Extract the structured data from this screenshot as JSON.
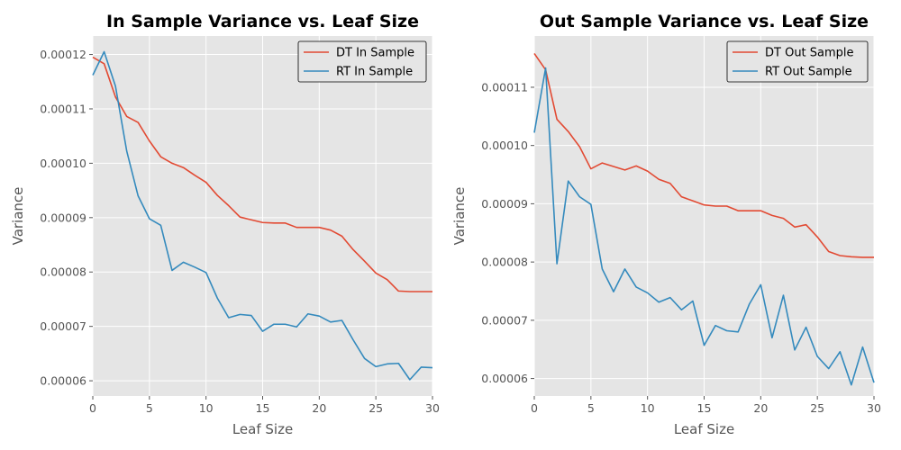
{
  "chart_data": [
    {
      "type": "line",
      "title": "In Sample Variance vs. Leaf Size",
      "xlabel": "Leaf Size",
      "ylabel": "Variance",
      "xlim": [
        0,
        30
      ],
      "ylim": [
        5.72e-05,
        0.0001234
      ],
      "xticks": [
        0,
        5,
        10,
        15,
        20,
        25,
        30
      ],
      "xtick_labels": [
        "0",
        "5",
        "10",
        "15",
        "20",
        "25",
        "30"
      ],
      "yticks": [
        6e-05,
        7e-05,
        8e-05,
        9e-05,
        0.0001,
        0.00011,
        0.00012
      ],
      "ytick_labels": [
        "0.00006",
        "0.00007",
        "0.00008",
        "0.00009",
        "0.00010",
        "0.00011",
        "0.00012"
      ],
      "grid": true,
      "legend": "top-right",
      "x": [
        0,
        1,
        2,
        3,
        4,
        5,
        6,
        7,
        8,
        9,
        10,
        11,
        12,
        13,
        14,
        15,
        16,
        17,
        18,
        19,
        20,
        21,
        22,
        23,
        24,
        25,
        26,
        27,
        28,
        29,
        30
      ],
      "series": [
        {
          "name": "DT In Sample",
          "color": "#E24A33",
          "values": [
            0.0001195,
            0.0001183,
            0.0001122,
            0.0001086,
            0.0001075,
            0.0001041,
            0.0001012,
            0.0001,
            9.92e-05,
            9.78e-05,
            9.65e-05,
            9.41e-05,
            9.22e-05,
            9.01e-05,
            8.96e-05,
            8.91e-05,
            8.9e-05,
            8.9e-05,
            8.82e-05,
            8.82e-05,
            8.82e-05,
            8.77e-05,
            8.66e-05,
            8.41e-05,
            8.2e-05,
            7.98e-05,
            7.86e-05,
            7.65e-05,
            7.64e-05,
            7.64e-05,
            7.64e-05
          ]
        },
        {
          "name": "RT In Sample",
          "color": "#348ABD",
          "values": [
            0.0001162,
            0.0001205,
            0.0001142,
            0.0001022,
            9.4e-05,
            8.98e-05,
            8.86e-05,
            8.03e-05,
            8.18e-05,
            8.09e-05,
            7.99e-05,
            7.52e-05,
            7.16e-05,
            7.22e-05,
            7.2e-05,
            6.91e-05,
            7.04e-05,
            7.04e-05,
            6.99e-05,
            7.23e-05,
            7.19e-05,
            7.08e-05,
            7.11e-05,
            6.75e-05,
            6.41e-05,
            6.26e-05,
            6.31e-05,
            6.32e-05,
            6.02e-05,
            6.25e-05,
            6.24e-05
          ]
        }
      ]
    },
    {
      "type": "line",
      "title": "Out Sample Variance vs. Leaf Size",
      "xlabel": "Leaf Size",
      "ylabel": "Variance",
      "xlim": [
        0,
        30
      ],
      "ylim": [
        5.7e-05,
        0.0001188
      ],
      "xticks": [
        0,
        5,
        10,
        15,
        20,
        25,
        30
      ],
      "xtick_labels": [
        "0",
        "5",
        "10",
        "15",
        "20",
        "25",
        "30"
      ],
      "yticks": [
        6e-05,
        7e-05,
        8e-05,
        9e-05,
        0.0001,
        0.00011
      ],
      "ytick_labels": [
        "0.00006",
        "0.00007",
        "0.00008",
        "0.00009",
        "0.00010",
        "0.00011"
      ],
      "grid": true,
      "legend": "top-right",
      "x": [
        0,
        1,
        2,
        3,
        4,
        5,
        6,
        7,
        8,
        9,
        10,
        11,
        12,
        13,
        14,
        15,
        16,
        17,
        18,
        19,
        20,
        21,
        22,
        23,
        24,
        25,
        26,
        27,
        28,
        29,
        30
      ],
      "series": [
        {
          "name": "DT Out Sample",
          "color": "#E24A33",
          "values": [
            0.0001158,
            0.000113,
            0.0001045,
            0.0001024,
            9.98e-05,
            9.6e-05,
            9.7e-05,
            9.64e-05,
            9.58e-05,
            9.65e-05,
            9.56e-05,
            9.42e-05,
            9.35e-05,
            9.12e-05,
            9.05e-05,
            8.98e-05,
            8.96e-05,
            8.96e-05,
            8.88e-05,
            8.88e-05,
            8.88e-05,
            8.8e-05,
            8.75e-05,
            8.6e-05,
            8.64e-05,
            8.43e-05,
            8.18e-05,
            8.11e-05,
            8.09e-05,
            8.08e-05,
            8.08e-05
          ]
        },
        {
          "name": "RT Out Sample",
          "color": "#348ABD",
          "values": [
            0.0001022,
            0.0001133,
            7.97e-05,
            9.39e-05,
            9.12e-05,
            8.99e-05,
            7.88e-05,
            7.49e-05,
            7.88e-05,
            7.57e-05,
            7.47e-05,
            7.31e-05,
            7.39e-05,
            7.18e-05,
            7.33e-05,
            6.57e-05,
            6.91e-05,
            6.82e-05,
            6.8e-05,
            7.28e-05,
            7.61e-05,
            6.7e-05,
            7.43e-05,
            6.49e-05,
            6.88e-05,
            6.38e-05,
            6.17e-05,
            6.46e-05,
            5.89e-05,
            6.54e-05,
            5.93e-05
          ]
        }
      ]
    }
  ]
}
